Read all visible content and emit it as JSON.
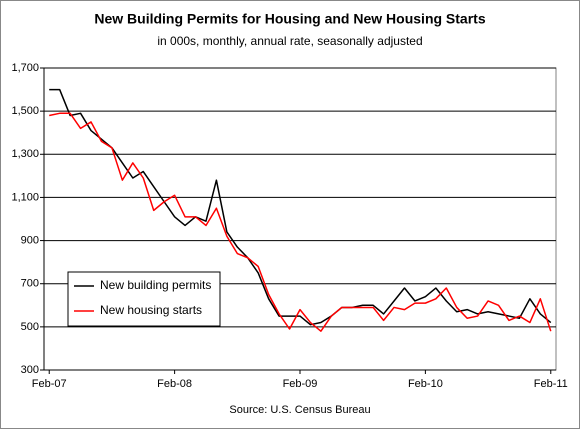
{
  "chart_data": {
    "type": "line",
    "title": "New Building Permits for Housing and New Housing Starts",
    "subtitle": "in 000s, monthly, annual rate, seasonally adjusted",
    "source": "Source: U.S. Census Bureau",
    "categories": [
      "Feb-07",
      null,
      null,
      null,
      null,
      null,
      null,
      null,
      null,
      null,
      null,
      null,
      "Feb-08",
      null,
      null,
      null,
      null,
      null,
      null,
      null,
      null,
      null,
      null,
      null,
      "Feb-09",
      null,
      null,
      null,
      null,
      null,
      null,
      null,
      null,
      null,
      null,
      null,
      "Feb-10",
      null,
      null,
      null,
      null,
      null,
      null,
      null,
      null,
      null,
      null,
      null,
      "Feb-11"
    ],
    "series": [
      {
        "name": "New building permits",
        "color": "#000000",
        "values": [
          1600,
          1600,
          1480,
          1490,
          1410,
          1370,
          1330,
          1260,
          1190,
          1220,
          1150,
          1080,
          1010,
          970,
          1010,
          990,
          1180,
          940,
          870,
          820,
          750,
          630,
          550,
          550,
          550,
          510,
          520,
          550,
          590,
          590,
          600,
          600,
          560,
          620,
          680,
          620,
          640,
          680,
          620,
          570,
          580,
          560,
          570,
          560,
          550,
          540,
          630,
          560,
          520
        ]
      },
      {
        "name": "New housing starts",
        "color": "#ff0000",
        "values": [
          1480,
          1490,
          1490,
          1420,
          1450,
          1360,
          1330,
          1180,
          1260,
          1190,
          1040,
          1080,
          1110,
          1010,
          1010,
          970,
          1050,
          920,
          840,
          820,
          780,
          650,
          560,
          490,
          580,
          520,
          480,
          550,
          590,
          590,
          590,
          590,
          530,
          590,
          580,
          610,
          610,
          630,
          680,
          590,
          540,
          550,
          620,
          600,
          530,
          550,
          520,
          630,
          480
        ]
      }
    ],
    "ylim": [
      300,
      1700
    ],
    "yticks": [
      300,
      500,
      700,
      900,
      {
        "value": 1100,
        "label": "1,100"
      },
      {
        "value": 1300,
        "label": "1,300"
      },
      {
        "value": 1500,
        "label": "1,500"
      },
      {
        "value": 1700,
        "label": "1,700"
      }
    ],
    "grid": true,
    "legend": "lower left"
  }
}
